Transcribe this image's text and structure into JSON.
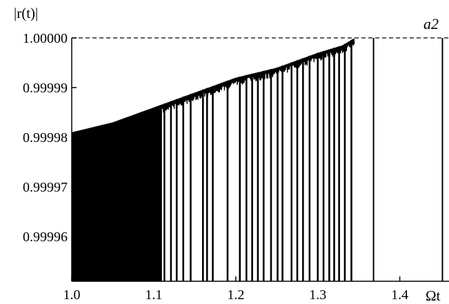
{
  "chart_data": {
    "type": "line",
    "title": "",
    "panel_label": "a2",
    "ylabel": "|r(t)|",
    "xlabel": "Ωt",
    "xlim": [
      1.0,
      1.46
    ],
    "ylim": [
      0.999951,
      1.0
    ],
    "x_ticks": [
      1.0,
      1.1,
      1.2,
      1.3,
      1.4
    ],
    "x_tick_labels": [
      "1.0",
      "1.1",
      "1.2",
      "1.3",
      "1.4"
    ],
    "y_ticks": [
      1.0,
      0.99999,
      0.99998,
      0.99997,
      0.99996
    ],
    "y_tick_labels": [
      "1.00000",
      "0.99999",
      "0.99998",
      "0.99997",
      "0.99996"
    ],
    "reference_line": {
      "y": 1.0,
      "style": "dashed"
    },
    "envelope": {
      "x": [
        1.0,
        1.05,
        1.1,
        1.15,
        1.2,
        1.25,
        1.3,
        1.33,
        1.345
      ],
      "y": [
        0.999981,
        0.999983,
        0.999986,
        0.999989,
        0.999992,
        0.999994,
        0.999997,
        0.9999985,
        1.0
      ]
    },
    "dips": [
      {
        "x": 1.113,
        "y": 0.999951
      },
      {
        "x": 1.121,
        "y": 0.999951
      },
      {
        "x": 1.128,
        "y": 0.999951
      },
      {
        "x": 1.136,
        "y": 0.999951
      },
      {
        "x": 1.145,
        "y": 0.999951
      },
      {
        "x": 1.16,
        "y": 0.999951
      },
      {
        "x": 1.165,
        "y": 0.999951
      },
      {
        "x": 1.172,
        "y": 0.999951
      },
      {
        "x": 1.19,
        "y": 0.999951
      },
      {
        "x": 1.205,
        "y": 0.999951
      },
      {
        "x": 1.213,
        "y": 0.999951
      },
      {
        "x": 1.22,
        "y": 0.999951
      },
      {
        "x": 1.227,
        "y": 0.999951
      },
      {
        "x": 1.234,
        "y": 0.999951
      },
      {
        "x": 1.243,
        "y": 0.999951
      },
      {
        "x": 1.251,
        "y": 0.999951
      },
      {
        "x": 1.257,
        "y": 0.999951
      },
      {
        "x": 1.268,
        "y": 0.999951
      },
      {
        "x": 1.275,
        "y": 0.999951
      },
      {
        "x": 1.282,
        "y": 0.999951
      },
      {
        "x": 1.29,
        "y": 0.999951
      },
      {
        "x": 1.3,
        "y": 0.999951
      },
      {
        "x": 1.307,
        "y": 0.999951
      },
      {
        "x": 1.314,
        "y": 0.999951
      },
      {
        "x": 1.32,
        "y": 0.999951
      },
      {
        "x": 1.326,
        "y": 0.999951
      },
      {
        "x": 1.333,
        "y": 0.999951
      },
      {
        "x": 1.341,
        "y": 0.999951
      },
      {
        "x": 1.368,
        "y": 0.999951
      },
      {
        "x": 1.452,
        "y": 0.999951
      }
    ],
    "grid": false,
    "legend": "none",
    "colors": {
      "line": "#000000",
      "background": "#ffffff"
    }
  }
}
